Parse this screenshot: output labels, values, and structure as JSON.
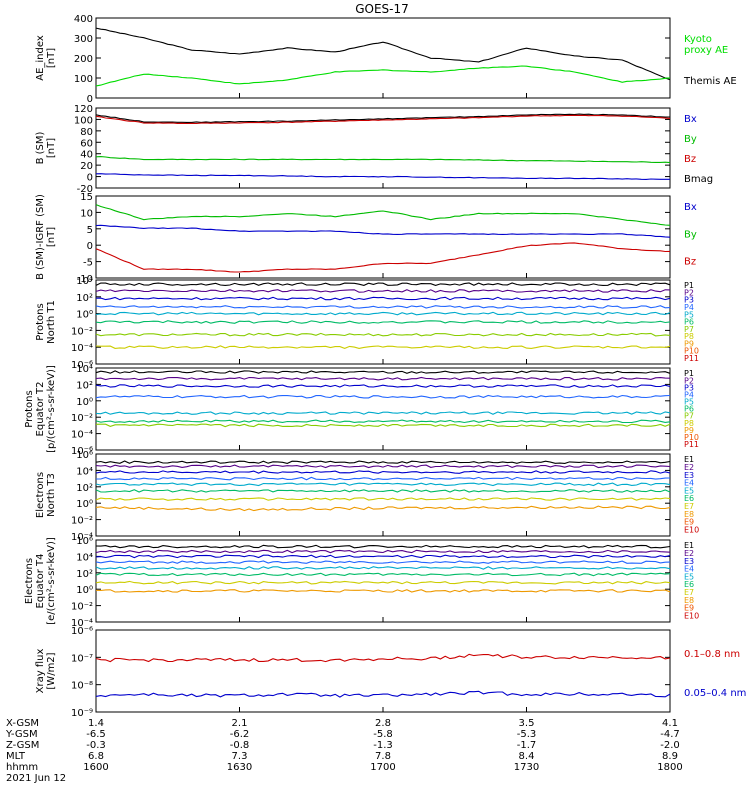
{
  "title": "GOES-17",
  "x_labels": {
    "rows": [
      "X-GSM",
      "Y-GSM",
      "Z-GSM",
      "MLT",
      "hhmm"
    ],
    "date": "2021 Jun 12",
    "columns": [
      [
        "1.4",
        "-6.5",
        "-0.3",
        "6.8",
        "1600"
      ],
      [
        "2.1",
        "-6.2",
        "-0.8",
        "7.3",
        "1630"
      ],
      [
        "2.8",
        "-5.8",
        "-1.3",
        "7.8",
        "1700"
      ],
      [
        "3.5",
        "-5.3",
        "-1.7",
        "8.4",
        "1730"
      ],
      [
        "4.1",
        "-4.7",
        "-2.0",
        "8.9",
        "1800"
      ]
    ]
  },
  "panels": [
    {
      "id": "ae",
      "ylabel": [
        "AE_index",
        "[nT]"
      ],
      "ticks": [
        "0",
        "100",
        "200",
        "300",
        "400"
      ],
      "legend": [
        {
          "text": "Kyoto",
          "color": "#00dd00"
        },
        {
          "text": "proxy AE",
          "color": "#00dd00"
        },
        {
          "text": "Themis AE",
          "color": "#000000"
        }
      ]
    },
    {
      "id": "bsm",
      "ylabel": [
        "B (SM)",
        "[nT]"
      ],
      "ticks": [
        "-20",
        "0",
        "20",
        "40",
        "60",
        "80",
        "100",
        "120"
      ],
      "legend": [
        {
          "text": "Bx",
          "color": "#0000cc"
        },
        {
          "text": "By",
          "color": "#00bb00"
        },
        {
          "text": "Bz",
          "color": "#cc0000"
        },
        {
          "text": "Bmag",
          "color": "#000000"
        }
      ]
    },
    {
      "id": "bigrf",
      "ylabel": [
        "B (SM)-IGRF (SM)",
        "[nT]"
      ],
      "ticks": [
        "-10",
        "-5",
        "0",
        "5",
        "10",
        "15"
      ],
      "legend": [
        {
          "text": "Bx",
          "color": "#0000cc"
        },
        {
          "text": "By",
          "color": "#00bb00"
        },
        {
          "text": "Bz",
          "color": "#cc0000"
        }
      ]
    },
    {
      "id": "protons_north",
      "ylabel": [
        "Protons",
        "North T1"
      ],
      "ticks": [
        "10⁻⁶",
        "10⁻⁴",
        "10⁻²",
        "10⁰",
        "10²",
        "10⁴"
      ],
      "legend": [
        {
          "text": "P1",
          "color": "#000000"
        },
        {
          "text": "P2",
          "color": "#550088"
        },
        {
          "text": "P3",
          "color": "#0000cc"
        },
        {
          "text": "P4",
          "color": "#2266ff"
        },
        {
          "text": "P5",
          "color": "#00aacc"
        },
        {
          "text": "P6",
          "color": "#00bb66"
        },
        {
          "text": "P7",
          "color": "#88cc00"
        },
        {
          "text": "P8",
          "color": "#cccc00"
        },
        {
          "text": "P9",
          "color": "#ee9900"
        },
        {
          "text": "P10",
          "color": "#ee5500"
        },
        {
          "text": "P11",
          "color": "#cc0000"
        }
      ]
    },
    {
      "id": "protons_equator",
      "ylabel": [
        "Protons",
        "Equator T2",
        "[p/(cm²-s-sr-keV)]"
      ],
      "ticks": [
        "10⁻⁶",
        "10⁻⁴",
        "10⁻²",
        "10⁰",
        "10²",
        "10⁴"
      ],
      "legend": [
        {
          "text": "P1",
          "color": "#000000"
        },
        {
          "text": "P2",
          "color": "#550088"
        },
        {
          "text": "P3",
          "color": "#0000cc"
        },
        {
          "text": "P4",
          "color": "#2266ff"
        },
        {
          "text": "P5",
          "color": "#00aacc"
        },
        {
          "text": "P6",
          "color": "#00bb66"
        },
        {
          "text": "P7",
          "color": "#88cc00"
        },
        {
          "text": "P8",
          "color": "#cccc00"
        },
        {
          "text": "P9",
          "color": "#ee9900"
        },
        {
          "text": "P10",
          "color": "#ee5500"
        },
        {
          "text": "P11",
          "color": "#cc0000"
        }
      ]
    },
    {
      "id": "electrons_north",
      "ylabel": [
        "Electrons",
        "North T3"
      ],
      "ticks": [
        "10⁻⁴",
        "10⁻²",
        "10⁰",
        "10²",
        "10⁴",
        "10⁶"
      ],
      "legend": [
        {
          "text": "E1",
          "color": "#000000"
        },
        {
          "text": "E2",
          "color": "#550088"
        },
        {
          "text": "E3",
          "color": "#0000cc"
        },
        {
          "text": "E4",
          "color": "#2266ff"
        },
        {
          "text": "E5",
          "color": "#00aacc"
        },
        {
          "text": "E6",
          "color": "#00bb66"
        },
        {
          "text": "E7",
          "color": "#cccc00"
        },
        {
          "text": "E8",
          "color": "#ee9900"
        },
        {
          "text": "E9",
          "color": "#ee5500"
        },
        {
          "text": "E10",
          "color": "#cc0000"
        }
      ]
    },
    {
      "id": "electrons_equator",
      "ylabel": [
        "Electrons",
        "Equator T4",
        "[e/(cm²-s-sr-keV)]"
      ],
      "ticks": [
        "10⁻⁴",
        "10⁻²",
        "10⁰",
        "10²",
        "10⁴",
        "10⁶"
      ],
      "legend": [
        {
          "text": "E1",
          "color": "#000000"
        },
        {
          "text": "E2",
          "color": "#550088"
        },
        {
          "text": "E3",
          "color": "#0000cc"
        },
        {
          "text": "E4",
          "color": "#2266ff"
        },
        {
          "text": "E5",
          "color": "#00aacc"
        },
        {
          "text": "E6",
          "color": "#00bb66"
        },
        {
          "text": "E7",
          "color": "#cccc00"
        },
        {
          "text": "E8",
          "color": "#ee9900"
        },
        {
          "text": "E9",
          "color": "#ee5500"
        },
        {
          "text": "E10",
          "color": "#cc0000"
        }
      ]
    },
    {
      "id": "xray",
      "ylabel": [
        "Xray flux",
        "[W/m2]"
      ],
      "ticks": [
        "10⁻⁹",
        "10⁻⁸",
        "10⁻⁷",
        "10⁻⁶"
      ],
      "legend": [
        {
          "text": "0.1–0.8 nm",
          "color": "#cc0000"
        },
        {
          "text": "0.05–0.4 nm",
          "color": "#0000cc"
        }
      ]
    }
  ],
  "chart_data": [
    {
      "type": "line",
      "panel": "ae",
      "x": [
        "1600",
        "1610",
        "1620",
        "1630",
        "1640",
        "1650",
        "1700",
        "1710",
        "1720",
        "1730",
        "1740",
        "1750",
        "1800"
      ],
      "ylim": [
        0,
        400
      ],
      "series": [
        {
          "name": "Themis AE",
          "color": "#000000",
          "values": [
            350,
            300,
            240,
            220,
            250,
            230,
            280,
            200,
            180,
            250,
            210,
            190,
            90
          ]
        },
        {
          "name": "Kyoto proxy AE",
          "color": "#00dd00",
          "values": [
            60,
            120,
            100,
            70,
            90,
            130,
            140,
            130,
            150,
            160,
            130,
            80,
            100
          ]
        }
      ]
    },
    {
      "type": "line",
      "panel": "bsm",
      "x": [
        "1600",
        "1610",
        "1620",
        "1630",
        "1640",
        "1650",
        "1700",
        "1710",
        "1720",
        "1730",
        "1740",
        "1750",
        "1800"
      ],
      "ylim": [
        -20,
        120
      ],
      "series": [
        {
          "name": "Bmag",
          "color": "#000000",
          "values": [
            108,
            96,
            95,
            96,
            97,
            99,
            101,
            103,
            105,
            108,
            109,
            108,
            104
          ]
        },
        {
          "name": "Bz",
          "color": "#cc0000",
          "values": [
            105,
            94,
            93,
            94,
            95,
            97,
            99,
            101,
            103,
            106,
            107,
            106,
            102
          ]
        },
        {
          "name": "By",
          "color": "#00bb00",
          "values": [
            35,
            30,
            30,
            30,
            30,
            30,
            30,
            30,
            29,
            28,
            27,
            26,
            25
          ]
        },
        {
          "name": "Bx",
          "color": "#0000cc",
          "values": [
            5,
            3,
            2,
            2,
            1,
            0,
            0,
            -1,
            -2,
            -3,
            -3,
            -4,
            -5
          ]
        }
      ]
    },
    {
      "type": "line",
      "panel": "bigrf",
      "x": [
        "1600",
        "1610",
        "1620",
        "1630",
        "1640",
        "1650",
        "1700",
        "1710",
        "1720",
        "1730",
        "1740",
        "1750",
        "1800"
      ],
      "ylim": [
        -12,
        16
      ],
      "series": [
        {
          "name": "By",
          "color": "#00bb00",
          "values": [
            13,
            8,
            9,
            9,
            10,
            9,
            11,
            8,
            10,
            10,
            10,
            8,
            6
          ]
        },
        {
          "name": "Bx",
          "color": "#0000cc",
          "values": [
            6,
            5,
            5,
            4,
            4,
            4,
            3,
            3,
            3,
            3,
            3,
            3,
            2
          ]
        },
        {
          "name": "Bz",
          "color": "#cc0000",
          "values": [
            -2,
            -9,
            -9,
            -10,
            -9,
            -9,
            -7,
            -7,
            -4,
            -1,
            0,
            -2,
            -3
          ]
        }
      ]
    },
    {
      "type": "line",
      "panel": "protons_north",
      "log": true,
      "x": [
        "1600",
        "1630",
        "1700",
        "1730",
        "1800"
      ],
      "ylim": [
        -6,
        4
      ],
      "series": [
        {
          "name": "P1",
          "color": "#000000",
          "values": [
            3.5,
            3.5,
            3.5,
            3.5,
            3.5
          ]
        },
        {
          "name": "P2",
          "color": "#550088",
          "values": [
            2.7,
            2.7,
            2.7,
            2.7,
            2.7
          ]
        },
        {
          "name": "P3",
          "color": "#0000cc",
          "values": [
            1.8,
            1.8,
            1.8,
            1.8,
            1.8
          ]
        },
        {
          "name": "P4",
          "color": "#2266ff",
          "values": [
            0.8,
            0.8,
            0.8,
            0.8,
            0.8
          ]
        },
        {
          "name": "P5",
          "color": "#00aacc",
          "values": [
            0,
            0,
            0,
            0,
            0
          ]
        },
        {
          "name": "P6",
          "color": "#00bb66",
          "values": [
            -1,
            -1,
            -1,
            -1,
            -1
          ]
        },
        {
          "name": "P7",
          "color": "#88cc00",
          "values": [
            -2.5,
            -2.5,
            -2.5,
            -2.5,
            -2.5
          ]
        },
        {
          "name": "P8",
          "color": "#cccc00",
          "values": [
            -4,
            -4,
            -4,
            -4,
            -4
          ]
        }
      ]
    },
    {
      "type": "line",
      "panel": "protons_equator",
      "log": true,
      "x": [
        "1600",
        "1630",
        "1700",
        "1730",
        "1800"
      ],
      "ylim": [
        -6,
        4
      ],
      "series": [
        {
          "name": "P1",
          "color": "#000000",
          "values": [
            3.5,
            3.5,
            3.5,
            3.5,
            3.5
          ]
        },
        {
          "name": "P2",
          "color": "#550088",
          "values": [
            2.7,
            2.7,
            2.7,
            2.7,
            2.7
          ]
        },
        {
          "name": "P3",
          "color": "#0000cc",
          "values": [
            1.8,
            1.8,
            1.8,
            1.8,
            1.8
          ]
        },
        {
          "name": "P4",
          "color": "#2266ff",
          "values": [
            0.5,
            0.5,
            0.5,
            0.5,
            0.5
          ]
        },
        {
          "name": "P5",
          "color": "#00aacc",
          "values": [
            -1.5,
            -1.5,
            -1.5,
            -1.5,
            -1.5
          ]
        },
        {
          "name": "P6",
          "color": "#00bb66",
          "values": [
            -2.5,
            -2.5,
            -2.5,
            -2.5,
            -2.5
          ]
        },
        {
          "name": "P7",
          "color": "#88cc00",
          "values": [
            -3,
            -3,
            -3,
            -3,
            -3
          ]
        }
      ]
    },
    {
      "type": "line",
      "panel": "electrons_north",
      "log": true,
      "x": [
        "1600",
        "1630",
        "1700",
        "1730",
        "1800"
      ],
      "ylim": [
        -4,
        6
      ],
      "series": [
        {
          "name": "E1",
          "color": "#000000",
          "values": [
            5,
            5,
            5,
            5,
            5
          ]
        },
        {
          "name": "E2",
          "color": "#550088",
          "values": [
            4.5,
            4.5,
            4.5,
            4.5,
            4.5
          ]
        },
        {
          "name": "E3",
          "color": "#0000cc",
          "values": [
            3.8,
            3.8,
            3.8,
            3.8,
            3.8
          ]
        },
        {
          "name": "E4",
          "color": "#2266ff",
          "values": [
            3,
            3,
            3,
            3,
            3
          ]
        },
        {
          "name": "E5",
          "color": "#00aacc",
          "values": [
            2.3,
            2.3,
            2.3,
            2.3,
            2.3
          ]
        },
        {
          "name": "E6",
          "color": "#00bb66",
          "values": [
            1.5,
            1.5,
            1.5,
            1.5,
            1.5
          ]
        },
        {
          "name": "E7",
          "color": "#cccc00",
          "values": [
            0.5,
            0.5,
            0.5,
            0.5,
            0.5
          ]
        },
        {
          "name": "E8",
          "color": "#ee9900",
          "values": [
            -0.5,
            -0.8,
            -0.6,
            -0.5,
            -0.5
          ]
        }
      ]
    },
    {
      "type": "line",
      "panel": "electrons_equator",
      "log": true,
      "x": [
        "1600",
        "1630",
        "1700",
        "1730",
        "1800"
      ],
      "ylim": [
        -4,
        6
      ],
      "series": [
        {
          "name": "E1",
          "color": "#000000",
          "values": [
            5.2,
            5.2,
            5.2,
            5.2,
            5.2
          ]
        },
        {
          "name": "E2",
          "color": "#550088",
          "values": [
            4.6,
            4.6,
            4.6,
            4.6,
            4.6
          ]
        },
        {
          "name": "E3",
          "color": "#0000cc",
          "values": [
            4,
            4,
            4,
            4,
            4
          ]
        },
        {
          "name": "E4",
          "color": "#2266ff",
          "values": [
            3.3,
            3.3,
            3.3,
            3.3,
            3.3
          ]
        },
        {
          "name": "E5",
          "color": "#00aacc",
          "values": [
            2.6,
            2.6,
            2.6,
            2.6,
            2.6
          ]
        },
        {
          "name": "E6",
          "color": "#00bb66",
          "values": [
            1.8,
            1.8,
            1.8,
            1.8,
            1.8
          ]
        },
        {
          "name": "E7",
          "color": "#cccc00",
          "values": [
            0.8,
            0.8,
            0.8,
            0.8,
            0.8
          ]
        },
        {
          "name": "E8",
          "color": "#ee9900",
          "values": [
            -0.2,
            -0.2,
            -0.2,
            -0.2,
            -0.2
          ]
        }
      ]
    },
    {
      "type": "line",
      "panel": "xray",
      "log": true,
      "x": [
        "1600",
        "1610",
        "1620",
        "1630",
        "1640",
        "1650",
        "1700",
        "1710",
        "1720",
        "1730",
        "1740",
        "1750",
        "1800"
      ],
      "ylim": [
        -9,
        -6
      ],
      "series": [
        {
          "name": "0.1–0.8 nm",
          "color": "#cc0000",
          "values": [
            -7.1,
            -7.1,
            -7.1,
            -7.1,
            -7.1,
            -7.1,
            -7.05,
            -7.05,
            -6.9,
            -7.0,
            -7.0,
            -7.0,
            -7.0
          ]
        },
        {
          "name": "0.05–0.4 nm",
          "color": "#0000cc",
          "values": [
            -8.4,
            -8.35,
            -8.4,
            -8.4,
            -8.35,
            -8.4,
            -8.4,
            -8.35,
            -8.3,
            -8.35,
            -8.35,
            -8.35,
            -8.4
          ]
        }
      ]
    }
  ]
}
